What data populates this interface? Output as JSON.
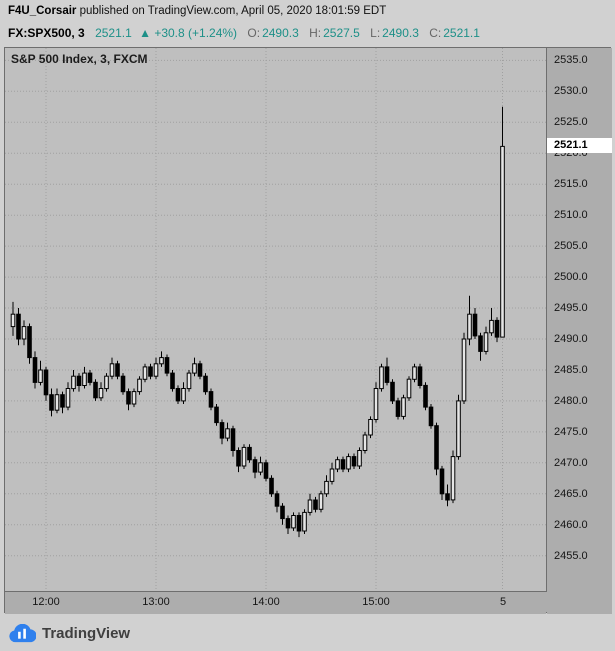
{
  "header": {
    "author": "F4U_Corsair",
    "published": " published on TradingView.com, April 05, 2020 18:01:59 EDT",
    "symbol": "FX:SPX500, 3",
    "last": "2521.1",
    "change": "▲ +30.8 (+1.24%)",
    "o_label": "O:",
    "o_value": "2490.3",
    "h_label": "H:",
    "h_value": "2527.5",
    "l_label": "L:",
    "l_value": "2490.3",
    "c_label": "C:",
    "c_value": "2521.1"
  },
  "chart": {
    "watermark_title": "S&P 500 Index, 3, FXCM",
    "price_label": "2521.1"
  },
  "footer": {
    "brand": "TradingView"
  },
  "colors": {
    "accent_teal": "#1d9088",
    "candle_outline": "#000000",
    "candle_up_fill": "#e6e6e6",
    "candle_down_fill": "#000000",
    "grid": "#a0a0a0",
    "plot_bg": "#bfbfbf",
    "axis_bg": "#adadad",
    "price_label_bg": "#ffffff",
    "logo_blue": "#2f80ed"
  },
  "chart_data": {
    "type": "candlestick",
    "title": "S&P 500 Index, 3, FXCM",
    "symbol": "FX:SPX500",
    "interval_minutes": 3,
    "exchange": "FXCM",
    "legend_position": "none",
    "grid": true,
    "y_range": [
      2449.3,
      2537.0
    ],
    "y_ticks": [
      2535,
      2530,
      2525,
      2520,
      2515,
      2510,
      2505,
      2500,
      2495,
      2490,
      2485,
      2480,
      2475,
      2470,
      2465,
      2460,
      2455
    ],
    "x_ticks": [
      {
        "label": "12:00",
        "index": 6
      },
      {
        "label": "13:00",
        "index": 26
      },
      {
        "label": "14:00",
        "index": 46
      },
      {
        "label": "15:00",
        "index": 66
      },
      {
        "label": "5",
        "index": 89
      }
    ],
    "last_price": 2521.1,
    "last_bar": {
      "open": 2490.3,
      "high": 2527.5,
      "low": 2490.3,
      "close": 2521.1
    },
    "candles": [
      [
        2492.0,
        2496.0,
        2490.5,
        2494.0
      ],
      [
        2494.0,
        2495.0,
        2489.0,
        2490.0
      ],
      [
        2490.0,
        2493.0,
        2489.0,
        2492.0
      ],
      [
        2492.0,
        2492.5,
        2486.0,
        2487.0
      ],
      [
        2487.0,
        2488.0,
        2482.0,
        2483.0
      ],
      [
        2483.0,
        2486.5,
        2482.5,
        2485.0
      ],
      [
        2485.0,
        2485.5,
        2480.0,
        2481.0
      ],
      [
        2481.0,
        2482.0,
        2477.5,
        2478.5
      ],
      [
        2478.5,
        2482.0,
        2478.0,
        2481.0
      ],
      [
        2481.0,
        2481.5,
        2478.0,
        2479.0
      ],
      [
        2479.0,
        2483.0,
        2478.5,
        2482.0
      ],
      [
        2482.0,
        2485.0,
        2481.5,
        2484.0
      ],
      [
        2484.0,
        2484.5,
        2481.5,
        2482.5
      ],
      [
        2482.5,
        2485.5,
        2482.0,
        2484.5
      ],
      [
        2484.5,
        2485.0,
        2482.5,
        2483.0
      ],
      [
        2483.0,
        2483.5,
        2480.0,
        2480.5
      ],
      [
        2480.5,
        2483.0,
        2480.0,
        2482.0
      ],
      [
        2482.0,
        2484.5,
        2481.5,
        2484.0
      ],
      [
        2484.0,
        2487.0,
        2483.5,
        2486.0
      ],
      [
        2486.0,
        2486.5,
        2483.5,
        2484.0
      ],
      [
        2484.0,
        2484.5,
        2481.0,
        2481.5
      ],
      [
        2481.5,
        2482.0,
        2478.5,
        2479.5
      ],
      [
        2479.5,
        2482.0,
        2479.0,
        2481.5
      ],
      [
        2481.5,
        2484.0,
        2481.0,
        2483.5
      ],
      [
        2483.5,
        2486.0,
        2483.0,
        2485.5
      ],
      [
        2485.5,
        2486.0,
        2483.5,
        2484.0
      ],
      [
        2484.0,
        2487.0,
        2483.5,
        2486.0
      ],
      [
        2486.0,
        2488.0,
        2485.5,
        2487.0
      ],
      [
        2487.0,
        2487.5,
        2484.0,
        2484.5
      ],
      [
        2484.5,
        2485.0,
        2481.5,
        2482.0
      ],
      [
        2482.0,
        2482.5,
        2479.5,
        2480.0
      ],
      [
        2480.0,
        2483.0,
        2479.5,
        2482.0
      ],
      [
        2482.0,
        2485.0,
        2481.5,
        2484.5
      ],
      [
        2484.5,
        2487.0,
        2484.0,
        2486.0
      ],
      [
        2486.0,
        2486.5,
        2483.5,
        2484.0
      ],
      [
        2484.0,
        2484.5,
        2481.0,
        2481.5
      ],
      [
        2481.5,
        2482.0,
        2478.5,
        2479.0
      ],
      [
        2479.0,
        2479.5,
        2476.0,
        2476.5
      ],
      [
        2476.5,
        2477.0,
        2473.0,
        2474.0
      ],
      [
        2474.0,
        2476.5,
        2473.5,
        2475.5
      ],
      [
        2475.5,
        2476.0,
        2471.0,
        2472.0
      ],
      [
        2472.0,
        2472.5,
        2468.5,
        2469.5
      ],
      [
        2469.5,
        2473.0,
        2469.0,
        2472.5
      ],
      [
        2472.5,
        2473.0,
        2470.0,
        2470.5
      ],
      [
        2470.5,
        2471.0,
        2467.5,
        2468.5
      ],
      [
        2468.5,
        2471.0,
        2468.0,
        2470.0
      ],
      [
        2470.0,
        2470.5,
        2467.0,
        2467.5
      ],
      [
        2467.5,
        2468.0,
        2464.5,
        2465.0
      ],
      [
        2465.0,
        2465.5,
        2462.0,
        2463.0
      ],
      [
        2463.0,
        2463.5,
        2460.0,
        2461.0
      ],
      [
        2461.0,
        2461.5,
        2458.5,
        2459.5
      ],
      [
        2459.5,
        2462.0,
        2459.0,
        2461.5
      ],
      [
        2461.5,
        2462.0,
        2458.0,
        2459.0
      ],
      [
        2459.0,
        2462.5,
        2458.5,
        2462.0
      ],
      [
        2462.0,
        2465.0,
        2461.5,
        2464.0
      ],
      [
        2464.0,
        2464.5,
        2462.0,
        2462.5
      ],
      [
        2462.5,
        2465.5,
        2462.0,
        2465.0
      ],
      [
        2465.0,
        2468.0,
        2464.5,
        2467.0
      ],
      [
        2467.0,
        2470.0,
        2466.5,
        2469.0
      ],
      [
        2469.0,
        2471.0,
        2468.5,
        2470.5
      ],
      [
        2470.5,
        2471.0,
        2468.5,
        2469.0
      ],
      [
        2469.0,
        2471.5,
        2468.5,
        2471.0
      ],
      [
        2471.0,
        2471.5,
        2469.0,
        2469.5
      ],
      [
        2469.5,
        2472.5,
        2469.0,
        2472.0
      ],
      [
        2472.0,
        2475.0,
        2471.5,
        2474.5
      ],
      [
        2474.5,
        2477.5,
        2474.0,
        2477.0
      ],
      [
        2477.0,
        2483.0,
        2476.5,
        2482.0
      ],
      [
        2482.0,
        2486.0,
        2481.5,
        2485.5
      ],
      [
        2485.5,
        2487.0,
        2482.5,
        2483.0
      ],
      [
        2483.0,
        2483.5,
        2479.5,
        2480.0
      ],
      [
        2480.0,
        2480.5,
        2477.0,
        2477.5
      ],
      [
        2477.5,
        2481.0,
        2477.0,
        2480.5
      ],
      [
        2480.5,
        2484.0,
        2480.0,
        2483.5
      ],
      [
        2483.5,
        2486.0,
        2483.0,
        2485.5
      ],
      [
        2485.5,
        2486.0,
        2482.0,
        2482.5
      ],
      [
        2482.5,
        2483.0,
        2478.5,
        2479.0
      ],
      [
        2479.0,
        2479.5,
        2475.5,
        2476.0
      ],
      [
        2476.0,
        2476.5,
        2468.0,
        2469.0
      ],
      [
        2469.0,
        2469.5,
        2464.0,
        2465.0
      ],
      [
        2465.0,
        2466.5,
        2463.0,
        2464.0
      ],
      [
        2464.0,
        2472.0,
        2463.5,
        2471.0
      ],
      [
        2471.0,
        2481.0,
        2470.5,
        2480.0
      ],
      [
        2480.0,
        2491.0,
        2479.5,
        2490.0
      ],
      [
        2490.0,
        2497.0,
        2489.0,
        2494.0
      ],
      [
        2494.0,
        2495.0,
        2490.0,
        2490.5
      ],
      [
        2490.5,
        2491.0,
        2486.5,
        2488.0
      ],
      [
        2488.0,
        2492.0,
        2487.5,
        2491.0
      ],
      [
        2491.0,
        2495.0,
        2490.5,
        2493.0
      ],
      [
        2493.0,
        2493.5,
        2489.5,
        2490.3
      ],
      [
        2490.3,
        2527.5,
        2490.3,
        2521.1
      ]
    ]
  }
}
